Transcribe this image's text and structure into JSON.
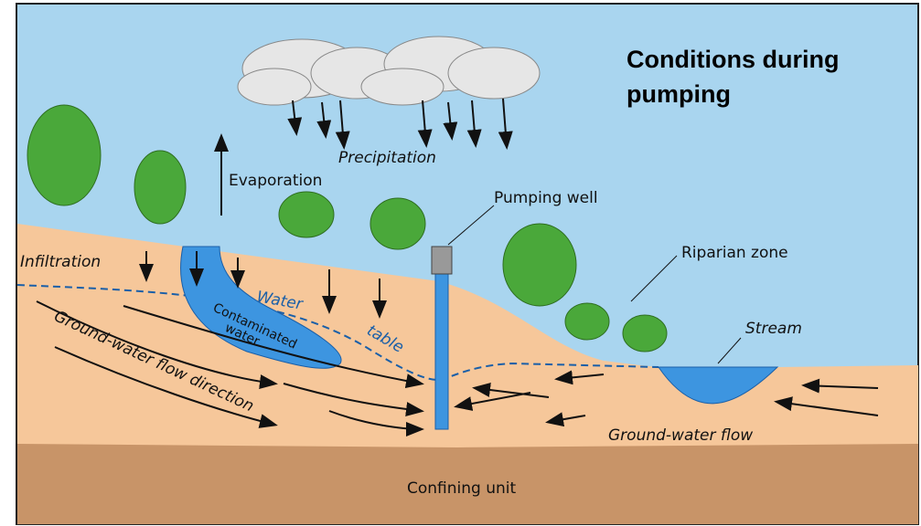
{
  "title": "Conditions during pumping",
  "labels": {
    "precipitation": "Precipitation",
    "evaporation": "Evaporation",
    "pumping_well": "Pumping well",
    "infiltration": "Infiltration",
    "water": "Water",
    "table": "table",
    "riparian_zone": "Riparian zone",
    "stream": "Stream",
    "contaminated": "Contaminated",
    "contaminated_water": "water",
    "gw_flow_direction": "Ground-water flow direction",
    "gw_flow": "Ground-water flow",
    "confining_unit": "Confining unit"
  }
}
